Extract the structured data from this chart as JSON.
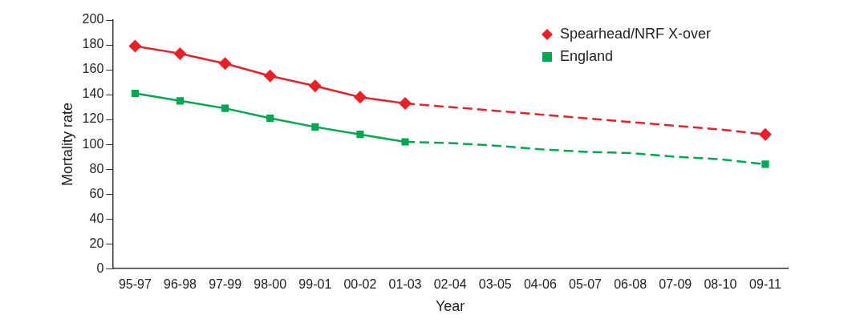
{
  "chart_data": {
    "type": "line",
    "xlabel": "Year",
    "ylabel": "Mortality rate",
    "categories": [
      "95-97",
      "96-98",
      "97-99",
      "98-00",
      "99-01",
      "00-02",
      "01-03",
      "02-04",
      "03-05",
      "04-06",
      "05-07",
      "06-08",
      "07-09",
      "08-10",
      "09-11"
    ],
    "ylim": [
      0,
      200
    ],
    "yticks": [
      0,
      20,
      40,
      60,
      80,
      100,
      120,
      140,
      160,
      180,
      200
    ],
    "grid": false,
    "legend": "top right",
    "series": [
      {
        "name": "Spearhead/NRF X-over",
        "color": "#e8202a",
        "marker": "diamond",
        "line_style": "solid",
        "values": [
          179,
          173,
          165,
          155,
          147,
          138,
          133,
          null,
          null,
          null,
          null,
          null,
          null,
          null,
          null
        ]
      },
      {
        "name": "England",
        "color": "#00a650",
        "marker": "square",
        "line_style": "solid",
        "values": [
          141,
          135,
          129,
          121,
          114,
          108,
          102,
          null,
          null,
          null,
          null,
          null,
          null,
          null,
          null
        ]
      },
      {
        "color": "#e8202a",
        "marker": "none",
        "line_style": "dashed",
        "values": [
          null,
          null,
          null,
          null,
          null,
          null,
          133,
          130,
          127,
          124,
          121,
          118,
          115,
          112,
          108
        ]
      },
      {
        "color": "#00a650",
        "marker": "none",
        "line_style": "dashed",
        "values": [
          null,
          null,
          null,
          null,
          null,
          null,
          102,
          101,
          99,
          96,
          94,
          93,
          90,
          88,
          84
        ]
      },
      {
        "type": "scatter",
        "color": "#e8202a",
        "marker": "diamond",
        "x": [
          "09-11"
        ],
        "values": [
          108
        ]
      },
      {
        "type": "scatter",
        "color": "#00a650",
        "marker": "square",
        "x": [
          "09-11"
        ],
        "values": [
          84
        ]
      }
    ]
  }
}
